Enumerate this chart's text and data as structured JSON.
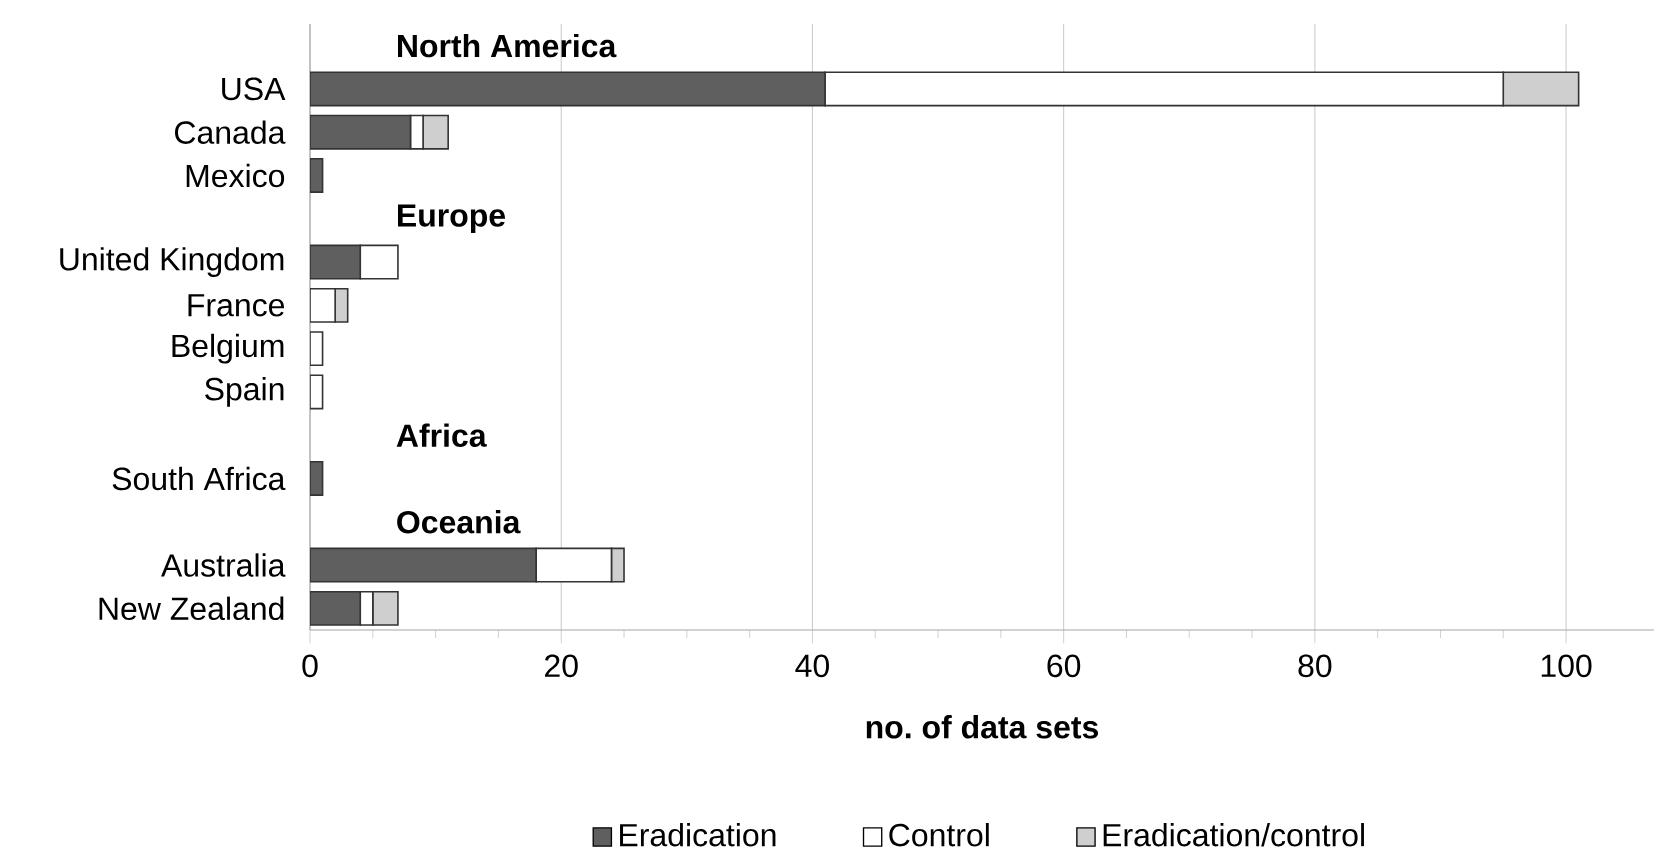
{
  "chart_data": {
    "type": "bar",
    "orientation": "horizontal",
    "stacked": true,
    "categories": [
      null,
      "USA",
      "Canada",
      "Mexico",
      null,
      "United Kingdom",
      "France",
      "Belgium",
      "Spain",
      null,
      "South Africa",
      null,
      "Australia",
      "New Zealand"
    ],
    "series": [
      {
        "name": "Eradication",
        "color": "#5f5f5f",
        "values": [
          null,
          41,
          8,
          1,
          null,
          4,
          0,
          0,
          0,
          null,
          1,
          null,
          18,
          4
        ]
      },
      {
        "name": "Control",
        "color": "#ffffff",
        "values": [
          null,
          54,
          1,
          0,
          null,
          3,
          2,
          1,
          1,
          null,
          0,
          null,
          6,
          1
        ]
      },
      {
        "name": "Eradication/control",
        "color": "#cfcfcf",
        "values": [
          null,
          6,
          2,
          0,
          null,
          0,
          1,
          0,
          0,
          null,
          0,
          null,
          1,
          2
        ]
      }
    ],
    "annotations": [
      "North America",
      "Europe",
      "Africa",
      "Oceania"
    ],
    "xlabel": "no. of data sets",
    "xlim": [
      0,
      107
    ],
    "xticks": [
      0,
      20,
      40,
      60,
      80,
      100
    ],
    "grid": "x",
    "legend": "bottom"
  }
}
